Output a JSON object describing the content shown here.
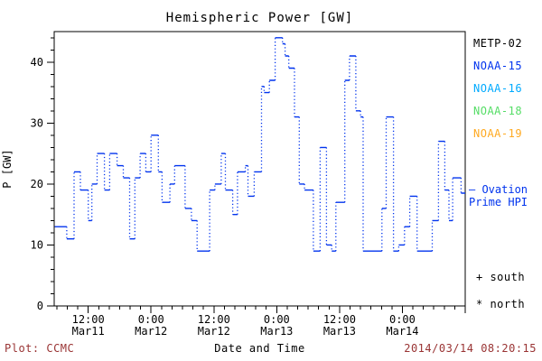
{
  "figure": {
    "title": "Hemispheric Power [GW]",
    "background": "#ffffff"
  },
  "legend": {
    "entries": [
      {
        "label": "METP-02",
        "color": "#000000"
      },
      {
        "label": "NOAA-15",
        "color": "#0033ee"
      },
      {
        "label": "NOAA-16",
        "color": "#00aaff"
      },
      {
        "label": "NOAA-18",
        "color": "#55dd66"
      },
      {
        "label": "NOAA-19",
        "color": "#ffaa22"
      }
    ]
  },
  "annotations": {
    "line_label_line1": "– Ovation",
    "line_label_line2": "Prime HPI",
    "south_marker": "+ south",
    "north_marker": "* north"
  },
  "footer": {
    "credit": "Plot: CCMC",
    "timestamp": "2014/03/14 08:20:15",
    "color": "#993333"
  },
  "chart_data": {
    "type": "line",
    "subtype": "step",
    "title": "Hemispheric Power [GW]",
    "xlabel": "Date and Time",
    "ylabel": "P [GW]",
    "x_unit": "hours from 2014-03-11 00:00",
    "xlim": [
      5.5,
      84
    ],
    "ylim": [
      0,
      45
    ],
    "grid": false,
    "legend_position": "right-outside",
    "x_major_ticks": [
      {
        "t": 12,
        "label": [
          "12:00",
          "Mar11"
        ]
      },
      {
        "t": 24,
        "label": [
          "0:00",
          "Mar12"
        ]
      },
      {
        "t": 36,
        "label": [
          "12:00",
          "Mar12"
        ]
      },
      {
        "t": 48,
        "label": [
          "0:00",
          "Mar13"
        ]
      },
      {
        "t": 60,
        "label": [
          "12:00",
          "Mar13"
        ]
      },
      {
        "t": 72,
        "label": [
          "0:00",
          "Mar14"
        ]
      }
    ],
    "x_minor_step": 2,
    "y_major_ticks": [
      0,
      10,
      20,
      30,
      40
    ],
    "y_minor_step": 2,
    "series": [
      {
        "name": "Ovation Prime HPI",
        "color": "#0033ee",
        "style": "step",
        "x_hours": [
          5.6,
          7.9,
          9.3,
          10.5,
          12.0,
          12.7,
          13.7,
          15.1,
          16.1,
          17.5,
          18.7,
          19.9,
          20.9,
          21.9,
          23.0,
          24.0,
          25.4,
          26.1,
          27.6,
          28.5,
          30.5,
          31.7,
          32.8,
          35.2,
          36.2,
          37.4,
          38.2,
          39.6,
          40.5,
          42.0,
          42.5,
          43.7,
          45.1,
          45.6,
          46.6,
          47.7,
          49.1,
          49.6,
          50.3,
          51.4,
          52.3,
          53.3,
          55.0,
          56.3,
          57.5,
          58.5,
          59.3,
          61.0,
          61.9,
          63.1,
          64.0,
          64.5,
          68.1,
          68.9,
          70.3,
          71.3,
          72.4,
          73.4,
          74.8,
          77.7,
          78.9,
          80.1,
          80.9,
          81.6,
          83.2
        ],
        "values_gw": [
          13,
          11,
          22,
          19,
          14,
          20,
          25,
          19,
          25,
          23,
          21,
          11,
          21,
          25,
          22,
          28,
          22,
          17,
          20,
          23,
          16,
          14,
          9,
          19,
          20,
          25,
          19,
          15,
          22,
          23,
          18,
          22,
          36,
          35,
          37,
          44,
          43,
          41,
          39,
          31,
          20,
          19,
          9,
          26,
          10,
          9,
          17,
          37,
          41,
          32,
          31,
          9,
          16,
          31,
          9,
          10,
          13,
          18,
          9,
          14,
          27,
          19,
          14,
          21,
          18.5
        ]
      }
    ]
  }
}
